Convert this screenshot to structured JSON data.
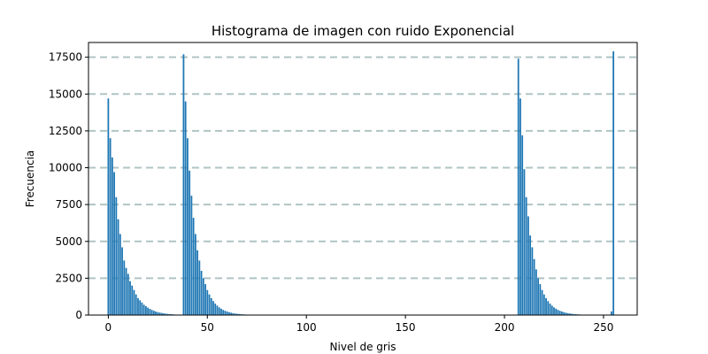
{
  "chart_data": {
    "type": "bar",
    "title": "Histograma de imagen con ruido Exponencial",
    "xlabel": "Nivel de gris",
    "ylabel": "Frecuencia",
    "xlim": [
      -10,
      267
    ],
    "ylim": [
      0,
      18500
    ],
    "xticks": [
      0,
      50,
      100,
      150,
      200,
      250
    ],
    "yticks": [
      0,
      2500,
      5000,
      7500,
      10000,
      12500,
      15000,
      17500
    ],
    "ytick_labels": [
      "0",
      "2500",
      "5000",
      "7500",
      "10000",
      "12500",
      "15000",
      "17500"
    ],
    "grid": "horizontal dashed",
    "bar_color": "#1f77b4",
    "grid_color": "#b0c4c4",
    "bins": [
      {
        "x": 0,
        "y": 14700
      },
      {
        "x": 1,
        "y": 12000
      },
      {
        "x": 2,
        "y": 10700
      },
      {
        "x": 3,
        "y": 9700
      },
      {
        "x": 4,
        "y": 8000
      },
      {
        "x": 5,
        "y": 6500
      },
      {
        "x": 6,
        "y": 5500
      },
      {
        "x": 7,
        "y": 4600
      },
      {
        "x": 8,
        "y": 3700
      },
      {
        "x": 9,
        "y": 3200
      },
      {
        "x": 10,
        "y": 2800
      },
      {
        "x": 11,
        "y": 2300
      },
      {
        "x": 12,
        "y": 2000
      },
      {
        "x": 13,
        "y": 1700
      },
      {
        "x": 14,
        "y": 1400
      },
      {
        "x": 15,
        "y": 1150
      },
      {
        "x": 16,
        "y": 1000
      },
      {
        "x": 17,
        "y": 850
      },
      {
        "x": 18,
        "y": 700
      },
      {
        "x": 19,
        "y": 600
      },
      {
        "x": 20,
        "y": 500
      },
      {
        "x": 21,
        "y": 420
      },
      {
        "x": 22,
        "y": 350
      },
      {
        "x": 23,
        "y": 290
      },
      {
        "x": 24,
        "y": 240
      },
      {
        "x": 25,
        "y": 200
      },
      {
        "x": 26,
        "y": 170
      },
      {
        "x": 27,
        "y": 140
      },
      {
        "x": 28,
        "y": 115
      },
      {
        "x": 29,
        "y": 95
      },
      {
        "x": 30,
        "y": 80
      },
      {
        "x": 31,
        "y": 65
      },
      {
        "x": 32,
        "y": 55
      },
      {
        "x": 33,
        "y": 45
      },
      {
        "x": 38,
        "y": 17700
      },
      {
        "x": 39,
        "y": 14500
      },
      {
        "x": 40,
        "y": 12000
      },
      {
        "x": 41,
        "y": 9800
      },
      {
        "x": 42,
        "y": 8100
      },
      {
        "x": 43,
        "y": 6600
      },
      {
        "x": 44,
        "y": 5500
      },
      {
        "x": 45,
        "y": 4400
      },
      {
        "x": 46,
        "y": 3700
      },
      {
        "x": 47,
        "y": 3000
      },
      {
        "x": 48,
        "y": 2500
      },
      {
        "x": 49,
        "y": 2100
      },
      {
        "x": 50,
        "y": 1700
      },
      {
        "x": 51,
        "y": 1400
      },
      {
        "x": 52,
        "y": 1150
      },
      {
        "x": 53,
        "y": 950
      },
      {
        "x": 54,
        "y": 780
      },
      {
        "x": 55,
        "y": 640
      },
      {
        "x": 56,
        "y": 520
      },
      {
        "x": 57,
        "y": 430
      },
      {
        "x": 58,
        "y": 350
      },
      {
        "x": 59,
        "y": 290
      },
      {
        "x": 60,
        "y": 240
      },
      {
        "x": 61,
        "y": 195
      },
      {
        "x": 62,
        "y": 160
      },
      {
        "x": 63,
        "y": 130
      },
      {
        "x": 64,
        "y": 105
      },
      {
        "x": 65,
        "y": 85
      },
      {
        "x": 66,
        "y": 70
      },
      {
        "x": 67,
        "y": 58
      },
      {
        "x": 68,
        "y": 47
      },
      {
        "x": 69,
        "y": 38
      },
      {
        "x": 70,
        "y": 31
      },
      {
        "x": 207,
        "y": 17400
      },
      {
        "x": 208,
        "y": 14700
      },
      {
        "x": 209,
        "y": 12200
      },
      {
        "x": 210,
        "y": 9900
      },
      {
        "x": 211,
        "y": 8000
      },
      {
        "x": 212,
        "y": 6700
      },
      {
        "x": 213,
        "y": 5400
      },
      {
        "x": 214,
        "y": 4600
      },
      {
        "x": 215,
        "y": 3800
      },
      {
        "x": 216,
        "y": 3100
      },
      {
        "x": 217,
        "y": 2500
      },
      {
        "x": 218,
        "y": 2100
      },
      {
        "x": 219,
        "y": 1700
      },
      {
        "x": 220,
        "y": 1400
      },
      {
        "x": 221,
        "y": 1150
      },
      {
        "x": 222,
        "y": 950
      },
      {
        "x": 223,
        "y": 780
      },
      {
        "x": 224,
        "y": 640
      },
      {
        "x": 225,
        "y": 520
      },
      {
        "x": 226,
        "y": 430
      },
      {
        "x": 227,
        "y": 350
      },
      {
        "x": 228,
        "y": 290
      },
      {
        "x": 229,
        "y": 240
      },
      {
        "x": 230,
        "y": 195
      },
      {
        "x": 231,
        "y": 160
      },
      {
        "x": 232,
        "y": 130
      },
      {
        "x": 233,
        "y": 105
      },
      {
        "x": 234,
        "y": 85
      },
      {
        "x": 235,
        "y": 70
      },
      {
        "x": 236,
        "y": 58
      },
      {
        "x": 237,
        "y": 47
      },
      {
        "x": 238,
        "y": 38
      },
      {
        "x": 239,
        "y": 31
      },
      {
        "x": 240,
        "y": 25
      },
      {
        "x": 254,
        "y": 250
      },
      {
        "x": 255,
        "y": 17900
      }
    ]
  }
}
